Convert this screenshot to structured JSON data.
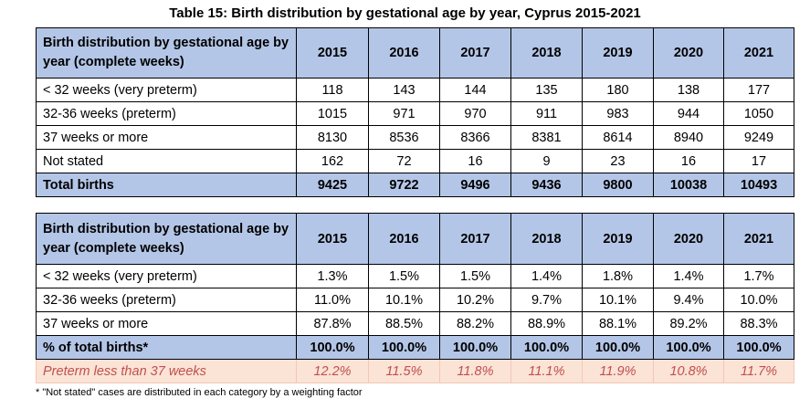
{
  "title": "Table 15: Birth distribution by gestational age by year, Cyprus 2015-2021",
  "colors": {
    "header_bg": "#b4c6e7",
    "preterm_bg": "#fbe3d6",
    "preterm_text": "#c0504d"
  },
  "table1": {
    "header": "Birth distribution by gestational age by year (complete weeks)",
    "years": [
      "2015",
      "2016",
      "2017",
      "2018",
      "2019",
      "2020",
      "2021"
    ],
    "rows": [
      {
        "label": "< 32 weeks (very preterm)",
        "values": [
          "118",
          "143",
          "144",
          "135",
          "180",
          "138",
          "177"
        ]
      },
      {
        "label": "32-36 weeks (preterm)",
        "values": [
          "1015",
          "971",
          "970",
          "911",
          "983",
          "944",
          "1050"
        ]
      },
      {
        "label": "37 weeks or more",
        "values": [
          "8130",
          "8536",
          "8366",
          "8381",
          "8614",
          "8940",
          "9249"
        ]
      },
      {
        "label": "Not stated",
        "values": [
          "162",
          "72",
          "16",
          "9",
          "23",
          "16",
          "17"
        ]
      }
    ],
    "total": {
      "label": "Total births",
      "values": [
        "9425",
        "9722",
        "9496",
        "9436",
        "9800",
        "10038",
        "10493"
      ]
    }
  },
  "table2": {
    "header": "Birth distribution by gestational age by year (complete weeks)",
    "years": [
      "2015",
      "2016",
      "2017",
      "2018",
      "2019",
      "2020",
      "2021"
    ],
    "rows": [
      {
        "label": "< 32 weeks (very preterm)",
        "values": [
          "1.3%",
          "1.5%",
          "1.5%",
          "1.4%",
          "1.8%",
          "1.4%",
          "1.7%"
        ]
      },
      {
        "label": "32-36 weeks (preterm)",
        "values": [
          "11.0%",
          "10.1%",
          "10.2%",
          "9.7%",
          "10.1%",
          "9.4%",
          "10.0%"
        ]
      },
      {
        "label": "37 weeks or more",
        "values": [
          "87.8%",
          "88.5%",
          "88.2%",
          "88.9%",
          "88.1%",
          "89.2%",
          "88.3%"
        ]
      }
    ],
    "total": {
      "label": "% of total births*",
      "values": [
        "100.0%",
        "100.0%",
        "100.0%",
        "100.0%",
        "100.0%",
        "100.0%",
        "100.0%"
      ]
    },
    "preterm": {
      "label": "Preterm less than 37 weeks",
      "values": [
        "12.2%",
        "11.5%",
        "11.8%",
        "11.1%",
        "11.9%",
        "10.8%",
        "11.7%"
      ]
    }
  },
  "footnote": "* \"Not stated\" cases are distributed in each category by a weighting factor"
}
